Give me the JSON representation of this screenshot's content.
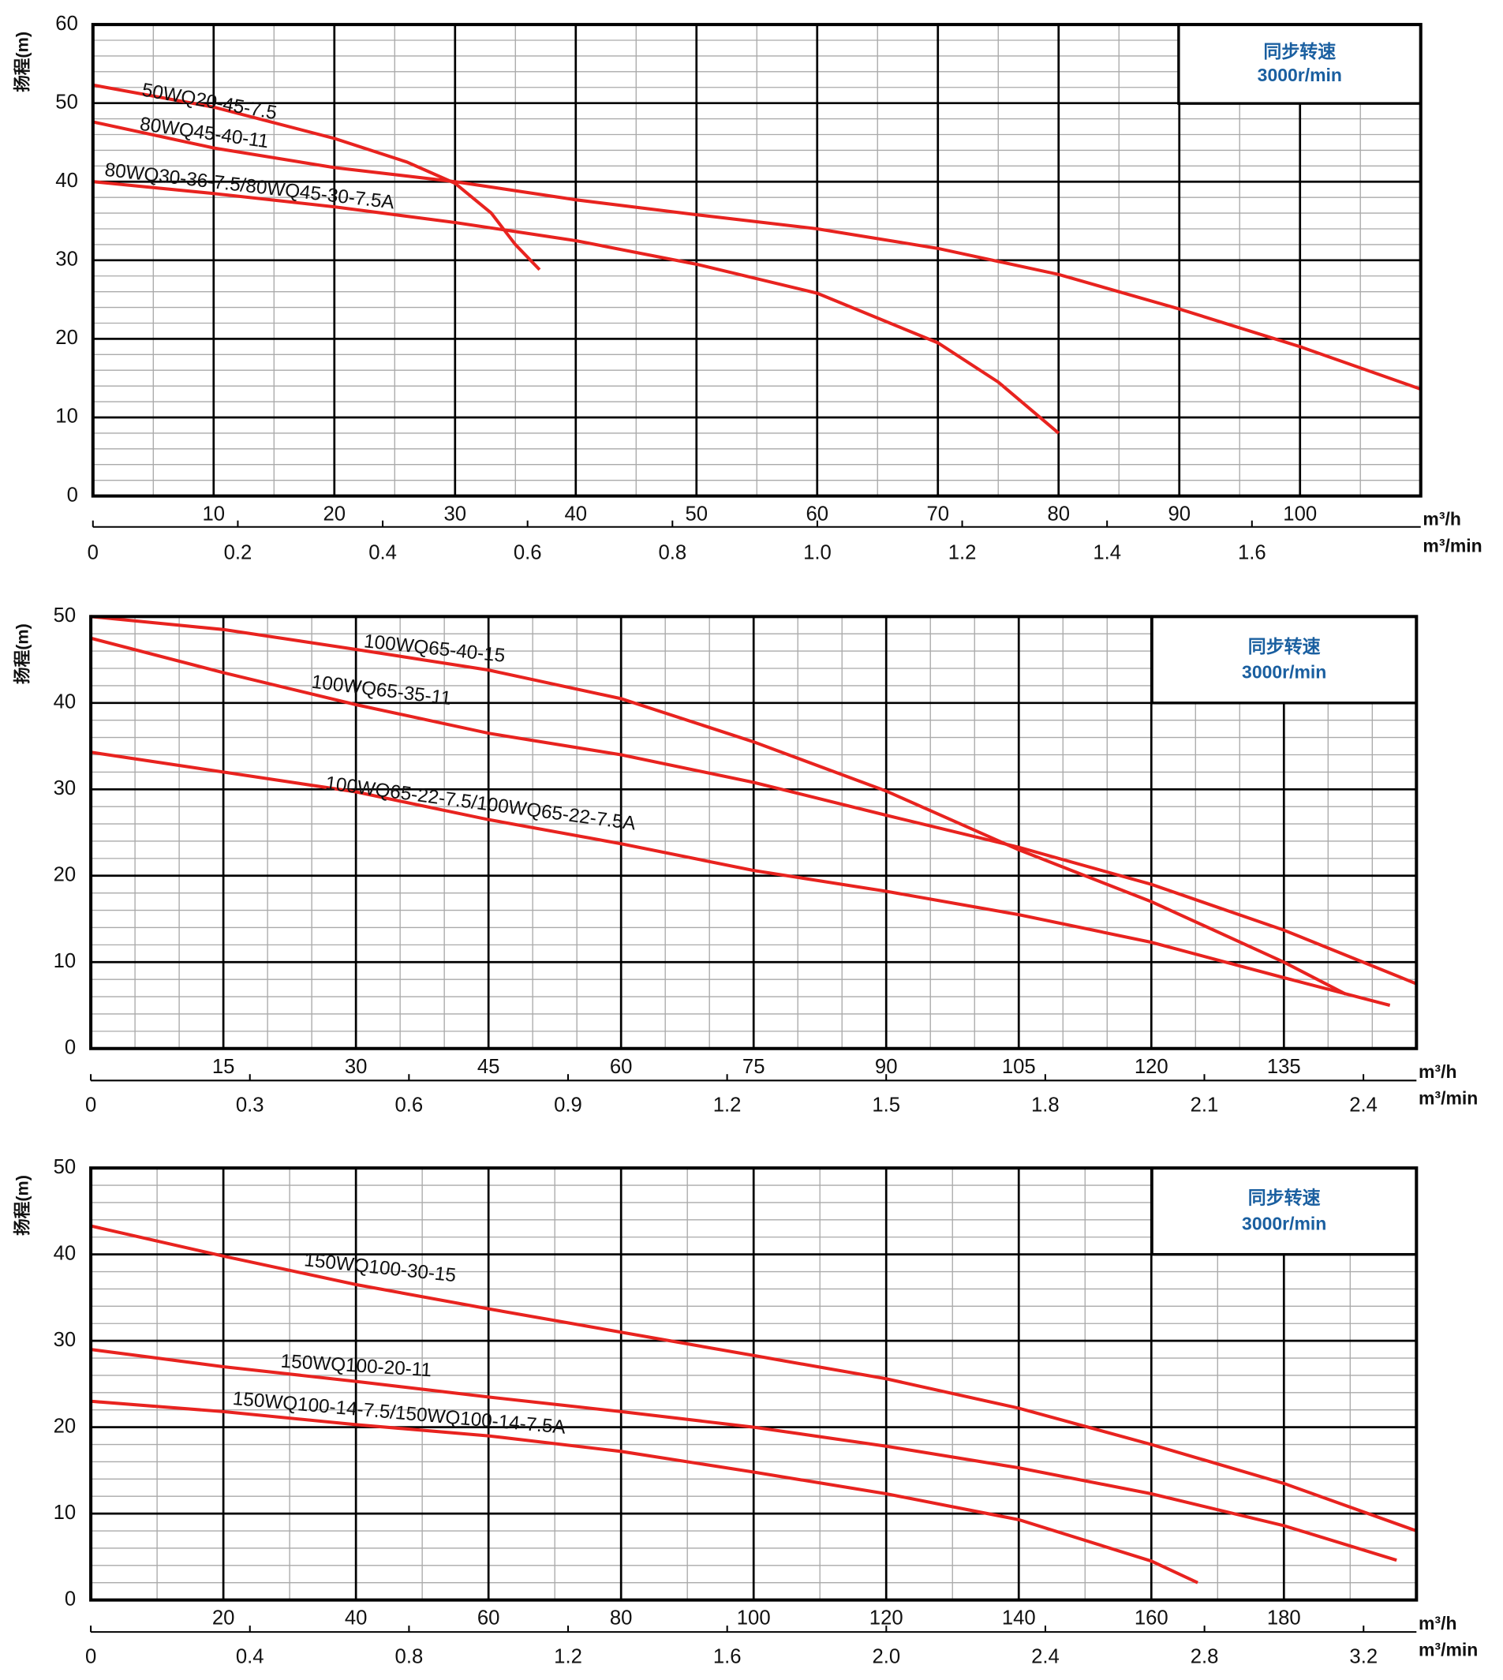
{
  "chart_data": [
    {
      "type": "line",
      "y_label": "扬程(m)",
      "x_label": "m³/h",
      "x2_label": "m³/min",
      "note": [
        "同步转速",
        "3000r/min"
      ],
      "xlim": [
        0,
        110
      ],
      "xticks": [
        10,
        20,
        30,
        40,
        50,
        60,
        70,
        80,
        90,
        100
      ],
      "x2lim": [
        0,
        1.833
      ],
      "x2ticks": [
        0,
        0.2,
        0.4,
        0.6,
        0.8,
        {
          "value": 1,
          "label": "1.0"
        },
        1.2,
        1.4,
        1.6
      ],
      "ylim": [
        0,
        60
      ],
      "yticks": [
        0,
        10,
        20,
        30,
        40,
        50,
        60
      ],
      "grid": true,
      "series": [
        {
          "name": "50WQ20-45-7.5",
          "color": "#e8231f",
          "x": [
            0,
            10,
            20,
            26,
            30,
            33,
            35,
            37
          ],
          "values": [
            52.3,
            49.5,
            45.5,
            42.5,
            39.8,
            36,
            32,
            28.8
          ]
        },
        {
          "name": "80WQ45-40-11",
          "color": "#e8231f",
          "x": [
            0,
            10,
            20,
            30,
            40,
            50,
            60,
            70,
            80,
            90,
            100,
            110
          ],
          "values": [
            47.6,
            44.3,
            41.8,
            40,
            37.7,
            35.8,
            34,
            31.5,
            28.2,
            23.8,
            19,
            13.6
          ]
        },
        {
          "name": "80WQ30-36-7.5/80WQ45-30-7.5A",
          "color": "#e8231f",
          "x": [
            0,
            10,
            20,
            30,
            40,
            50,
            60,
            70,
            75,
            80
          ],
          "values": [
            40,
            38.5,
            36.8,
            34.8,
            32.5,
            29.5,
            25.8,
            19.5,
            14.5,
            8
          ]
        }
      ]
    },
    {
      "type": "line",
      "y_label": "扬程(m)",
      "x_label": "m³/h",
      "x2_label": "m³/min",
      "note": [
        "同步转速",
        "3000r/min"
      ],
      "xlim": [
        0,
        150
      ],
      "xticks": [
        15,
        30,
        45,
        60,
        75,
        90,
        105,
        120,
        135
      ],
      "x2lim": [
        0,
        2.5
      ],
      "x2ticks": [
        0,
        0.3,
        0.6,
        0.9,
        1.2,
        1.5,
        1.8,
        2.1,
        2.4
      ],
      "ylim": [
        0,
        50
      ],
      "yticks": [
        0,
        10,
        20,
        30,
        40,
        50
      ],
      "grid": true,
      "series": [
        {
          "name": "100WQ65-40-15",
          "color": "#e8231f",
          "x": [
            0,
            15,
            30,
            45,
            60,
            75,
            90,
            105,
            120,
            135,
            142
          ],
          "values": [
            50,
            48.5,
            46.2,
            43.8,
            40.5,
            35.5,
            29.8,
            23,
            17,
            10,
            6.3
          ]
        },
        {
          "name": "100WQ65-35-11",
          "color": "#e8231f",
          "x": [
            0,
            15,
            30,
            45,
            60,
            75,
            90,
            105,
            120,
            135,
            150
          ],
          "values": [
            47.5,
            43.5,
            39.8,
            36.5,
            34,
            30.8,
            27,
            23.3,
            19,
            13.7,
            7.5
          ]
        },
        {
          "name": "100WQ65-22-7.5/100WQ65-22-7.5A",
          "color": "#e8231f",
          "x": [
            0,
            15,
            30,
            45,
            60,
            75,
            90,
            105,
            120,
            135,
            147
          ],
          "values": [
            34.3,
            32,
            29.7,
            26.5,
            23.7,
            20.6,
            18.2,
            15.5,
            12.3,
            8.2,
            5
          ]
        }
      ]
    },
    {
      "type": "line",
      "y_label": "扬程(m)",
      "x_label": "m³/h",
      "x2_label": "m³/min",
      "note": [
        "同步转速",
        "3000r/min"
      ],
      "xlim": [
        0,
        200
      ],
      "xticks": [
        20,
        40,
        60,
        80,
        100,
        120,
        140,
        160,
        180
      ],
      "x2lim": [
        0,
        3.333
      ],
      "x2ticks": [
        0,
        0.4,
        0.8,
        1.2,
        1.6,
        {
          "value": 2,
          "label": "2.0"
        },
        2.4,
        2.8,
        3.2
      ],
      "ylim": [
        0,
        50
      ],
      "yticks": [
        0,
        10,
        20,
        30,
        40,
        50
      ],
      "grid": true,
      "series": [
        {
          "name": "150WQ100-30-15",
          "color": "#e8231f",
          "x": [
            0,
            20,
            40,
            60,
            80,
            100,
            120,
            140,
            160,
            180,
            200
          ],
          "values": [
            43.3,
            39.8,
            36.5,
            33.7,
            31,
            28.3,
            25.6,
            22.2,
            18,
            13.5,
            8
          ]
        },
        {
          "name": "150WQ100-20-11",
          "color": "#e8231f",
          "x": [
            0,
            20,
            40,
            60,
            80,
            100,
            120,
            140,
            160,
            180,
            197
          ],
          "values": [
            29,
            27,
            25.3,
            23.5,
            21.8,
            20,
            17.8,
            15.3,
            12.3,
            8.6,
            4.6
          ]
        },
        {
          "name": "150WQ100-14-7.5/150WQ100-14-7.5A",
          "color": "#e8231f",
          "x": [
            0,
            20,
            40,
            60,
            80,
            100,
            120,
            140,
            160,
            167
          ],
          "values": [
            23,
            21.8,
            20.3,
            19,
            17.2,
            14.8,
            12.3,
            9.3,
            4.5,
            2
          ]
        }
      ]
    }
  ]
}
